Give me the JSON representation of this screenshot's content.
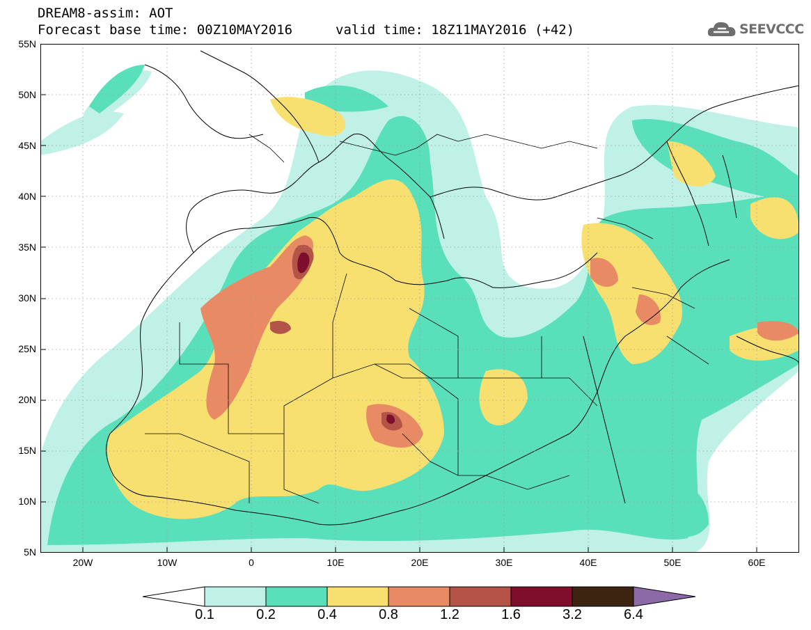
{
  "header": {
    "line1": "DREAM8-assim: AOT",
    "line2": "Forecast base time: 00Z10MAY2016",
    "valid": "valid time: 18Z11MAY2016 (+42)"
  },
  "logo": {
    "text": "SEEVCCC",
    "icon": "cloud-icon"
  },
  "map": {
    "lat_labels": [
      "55N",
      "50N",
      "45N",
      "40N",
      "35N",
      "30N",
      "25N",
      "20N",
      "15N",
      "10N",
      "5N"
    ],
    "lon_labels": [
      "20W",
      "10W",
      "0",
      "10E",
      "20E",
      "30E",
      "40E",
      "50E",
      "60E"
    ],
    "extent": {
      "lon": [
        -25,
        65
      ],
      "lat": [
        5,
        55
      ]
    }
  },
  "legend": {
    "labels": [
      "0.1",
      "0.2",
      "0.4",
      "0.8",
      "1.2",
      "1.6",
      "3.2",
      "6.4"
    ],
    "colors": [
      "#ffffff",
      "#bff1e6",
      "#59e0bb",
      "#f8e070",
      "#e88a63",
      "#b45449",
      "#7d0e2c",
      "#3d2411",
      "#8c6aa8"
    ]
  }
}
